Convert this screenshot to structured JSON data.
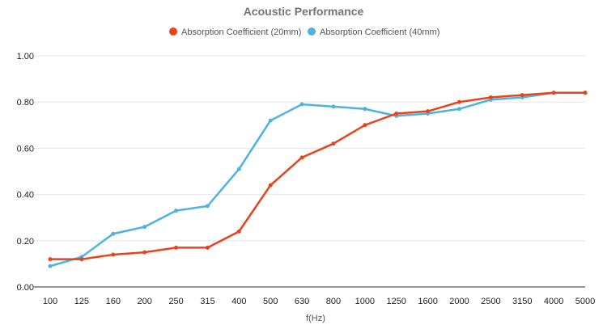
{
  "chart_data": {
    "type": "line",
    "title": "Acoustic Performance",
    "xlabel": "f(Hz)",
    "ylabel": "",
    "categories": [
      "100",
      "125",
      "160",
      "200",
      "250",
      "315",
      "400",
      "500",
      "630",
      "800",
      "1000",
      "1250",
      "1600",
      "2000",
      "2500",
      "3150",
      "4000",
      "5000"
    ],
    "ylim": [
      0,
      1
    ],
    "yticks": [
      "0.00",
      "0.20",
      "0.40",
      "0.60",
      "0.80",
      "1.00"
    ],
    "grid": true,
    "legend_position": "top-center",
    "series": [
      {
        "name": "Absorption Coefficient (20mm)",
        "color": "#e8431a",
        "values": [
          0.12,
          0.12,
          0.14,
          0.15,
          0.17,
          0.17,
          0.24,
          0.44,
          0.56,
          0.62,
          0.7,
          0.75,
          0.76,
          0.8,
          0.82,
          0.83,
          0.84,
          0.84
        ]
      },
      {
        "name": "Absorption Coefficient (40mm)",
        "color": "#4db3e0",
        "values": [
          0.09,
          0.13,
          0.23,
          0.26,
          0.33,
          0.35,
          0.51,
          0.72,
          0.79,
          0.78,
          0.77,
          0.74,
          0.75,
          0.77,
          0.81,
          0.82,
          0.84,
          0.84
        ]
      }
    ]
  }
}
